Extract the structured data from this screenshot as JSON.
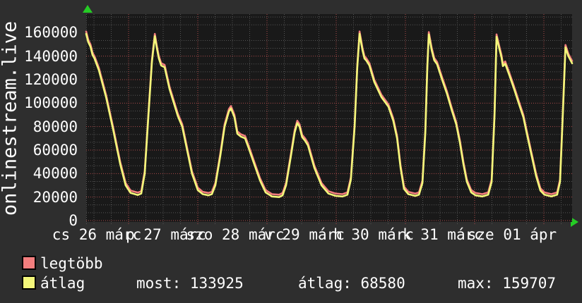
{
  "colors": {
    "background": "#2e2e2e",
    "plot_background": "#191919",
    "grid_major": "#aa4a4a",
    "grid_minor": "#545454",
    "text": "#ffffff",
    "arrow_green": "#25cc25",
    "series_legtobb": "#f37e7e",
    "series_atlag": "#f3f77a"
  },
  "chart_data": {
    "type": "line",
    "ylabel": "onlinestream.live",
    "legend_position": "bottom-left",
    "grid": true,
    "y_axis": {
      "min": 0,
      "top_of_canvas_value": 175800,
      "major_step": 20000,
      "minor_divisions_per_major": 3,
      "ticks": [
        {
          "value": 0,
          "label": "0"
        },
        {
          "value": 20000,
          "label": "20000"
        },
        {
          "value": 40000,
          "label": "40000"
        },
        {
          "value": 60000,
          "label": "60000"
        },
        {
          "value": 80000,
          "label": "80000"
        },
        {
          "value": 100000,
          "label": "100000"
        },
        {
          "value": 120000,
          "label": "120000"
        },
        {
          "value": 140000,
          "label": "140000"
        },
        {
          "value": 160000,
          "label": "160000"
        }
      ]
    },
    "x_axis": {
      "start_hour": 9.3,
      "end_hour": 177.8,
      "major_step_hours": 24,
      "minor_step_hours": 6,
      "day_labels": [
        "cs 26 márc",
        "p 27 márc",
        "szo 28 márc",
        "v 29 márc",
        "h 30 márc",
        "k 31 márc",
        "sze 01 ápr"
      ]
    },
    "series": [
      {
        "name": "legtöbb",
        "color": "#f37e7e",
        "note": "max line, drawn under átlag, approx átlag + offset",
        "offset_above_atlag": 2000
      },
      {
        "name": "átlag",
        "color": "#f3f77a",
        "points": [
          [
            9.3,
            159000
          ],
          [
            10.0,
            152000
          ],
          [
            10.8,
            148000
          ],
          [
            11.5,
            141000
          ],
          [
            12.2,
            138000
          ],
          [
            13.7,
            128000
          ],
          [
            16.2,
            105000
          ],
          [
            18.6,
            78000
          ],
          [
            21.1,
            48000
          ],
          [
            23.0,
            30000
          ],
          [
            24.7,
            23500
          ],
          [
            27.2,
            21800
          ],
          [
            28.4,
            23000
          ],
          [
            29.6,
            40000
          ],
          [
            30.9,
            90000
          ],
          [
            32.1,
            135000
          ],
          [
            33.1,
            157000
          ],
          [
            33.8,
            147000
          ],
          [
            34.5,
            138000
          ],
          [
            35.3,
            132000
          ],
          [
            36.5,
            130500
          ],
          [
            38.2,
            112000
          ],
          [
            40.2,
            96000
          ],
          [
            41.1,
            89000
          ],
          [
            42.6,
            80000
          ],
          [
            44.3,
            60000
          ],
          [
            46.0,
            40000
          ],
          [
            48.0,
            26000
          ],
          [
            49.7,
            22500
          ],
          [
            51.7,
            21500
          ],
          [
            52.9,
            22500
          ],
          [
            54.1,
            30000
          ],
          [
            55.8,
            55000
          ],
          [
            57.3,
            80000
          ],
          [
            58.8,
            93000
          ],
          [
            59.5,
            95500
          ],
          [
            60.7,
            88000
          ],
          [
            61.7,
            74000
          ],
          [
            62.9,
            71500
          ],
          [
            64.4,
            70000
          ],
          [
            65.6,
            62000
          ],
          [
            67.6,
            48000
          ],
          [
            69.6,
            34000
          ],
          [
            71.5,
            24000
          ],
          [
            73.7,
            20500
          ],
          [
            76.2,
            20000
          ],
          [
            77.4,
            21500
          ],
          [
            78.6,
            30000
          ],
          [
            80.3,
            55000
          ],
          [
            81.6,
            75000
          ],
          [
            82.5,
            83000
          ],
          [
            83.3,
            80000
          ],
          [
            84.2,
            71000
          ],
          [
            85.2,
            68000
          ],
          [
            86.2,
            64000
          ],
          [
            88.4,
            45000
          ],
          [
            90.9,
            30000
          ],
          [
            93.3,
            23000
          ],
          [
            95.8,
            21000
          ],
          [
            98.2,
            20500
          ],
          [
            99.9,
            22000
          ],
          [
            101.1,
            35000
          ],
          [
            102.4,
            80000
          ],
          [
            103.3,
            130000
          ],
          [
            104.1,
            159000
          ],
          [
            105.1,
            145000
          ],
          [
            105.8,
            138000
          ],
          [
            106.5,
            136000
          ],
          [
            107.5,
            132000
          ],
          [
            109.2,
            118000
          ],
          [
            111.7,
            105000
          ],
          [
            114.1,
            97000
          ],
          [
            115.8,
            85000
          ],
          [
            117.1,
            70000
          ],
          [
            118.3,
            45000
          ],
          [
            119.5,
            27000
          ],
          [
            121.0,
            22500
          ],
          [
            123.4,
            21000
          ],
          [
            124.7,
            22000
          ],
          [
            125.9,
            32000
          ],
          [
            126.9,
            75000
          ],
          [
            127.6,
            130000
          ],
          [
            128.1,
            158500
          ],
          [
            129.1,
            145000
          ],
          [
            130.0,
            136500
          ],
          [
            131.0,
            133000
          ],
          [
            132.7,
            120000
          ],
          [
            134.4,
            108000
          ],
          [
            136.2,
            93000
          ],
          [
            137.6,
            82000
          ],
          [
            138.9,
            66000
          ],
          [
            140.1,
            48000
          ],
          [
            141.3,
            33000
          ],
          [
            142.8,
            24000
          ],
          [
            144.3,
            21500
          ],
          [
            146.7,
            20500
          ],
          [
            148.7,
            22000
          ],
          [
            149.9,
            33000
          ],
          [
            150.9,
            90000
          ],
          [
            151.6,
            156500
          ],
          [
            152.6,
            146000
          ],
          [
            153.3,
            139000
          ],
          [
            153.8,
            131500
          ],
          [
            154.6,
            133500
          ],
          [
            156.0,
            124000
          ],
          [
            157.7,
            112000
          ],
          [
            159.4,
            99000
          ],
          [
            160.9,
            88000
          ],
          [
            162.1,
            74000
          ],
          [
            163.8,
            55000
          ],
          [
            165.3,
            38000
          ],
          [
            166.8,
            25500
          ],
          [
            168.2,
            22000
          ],
          [
            170.6,
            20500
          ],
          [
            172.6,
            22000
          ],
          [
            173.6,
            33000
          ],
          [
            174.5,
            85000
          ],
          [
            175.5,
            147500
          ],
          [
            176.5,
            140000
          ],
          [
            177.8,
            133925
          ]
        ]
      }
    ],
    "legend": [
      {
        "label": "legtöbb",
        "color": "#f37e7e"
      },
      {
        "label": "átlag",
        "color": "#f3f77a"
      }
    ],
    "stats": {
      "most": "most: 133925",
      "atlag": "átlag: 68580",
      "max": "max: 159707"
    }
  }
}
